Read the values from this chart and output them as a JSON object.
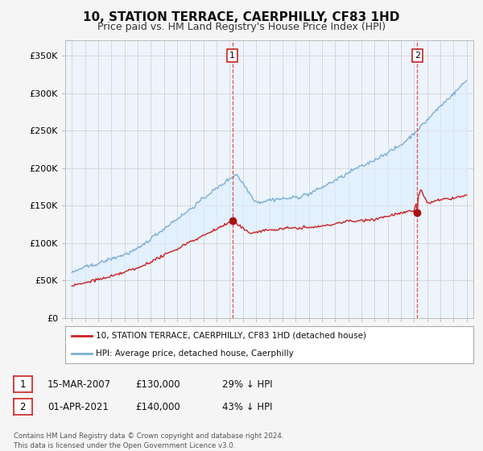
{
  "title": "10, STATION TERRACE, CAERPHILLY, CF83 1HD",
  "subtitle": "Price paid vs. HM Land Registry's House Price Index (HPI)",
  "hpi_color": "#7bafd4",
  "price_color": "#cc2222",
  "fill_color": "#ddeeff",
  "marker_color": "#aa1111",
  "background_color": "#f5f5f5",
  "plot_bg_color": "#eef4fb",
  "ylim": [
    0,
    370000
  ],
  "yticks": [
    0,
    50000,
    100000,
    150000,
    200000,
    250000,
    300000,
    350000
  ],
  "ytick_labels": [
    "£0",
    "£50K",
    "£100K",
    "£150K",
    "£200K",
    "£250K",
    "£300K",
    "£350K"
  ],
  "sale1_date_label": "15-MAR-2007",
  "sale1_price": 130000,
  "sale1_price_label": "£130,000",
  "sale1_pct_label": "29% ↓ HPI",
  "sale1_year": 2007.2,
  "sale2_date_label": "01-APR-2021",
  "sale2_price": 140000,
  "sale2_price_label": "£140,000",
  "sale2_pct_label": "43% ↓ HPI",
  "sale2_year": 2021.25,
  "legend_label1": "10, STATION TERRACE, CAERPHILLY, CF83 1HD (detached house)",
  "legend_label2": "HPI: Average price, detached house, Caerphilly",
  "footer": "Contains HM Land Registry data © Crown copyright and database right 2024.\nThis data is licensed under the Open Government Licence v3.0.",
  "xlim_start": 1994.5,
  "xlim_end": 2025.5
}
